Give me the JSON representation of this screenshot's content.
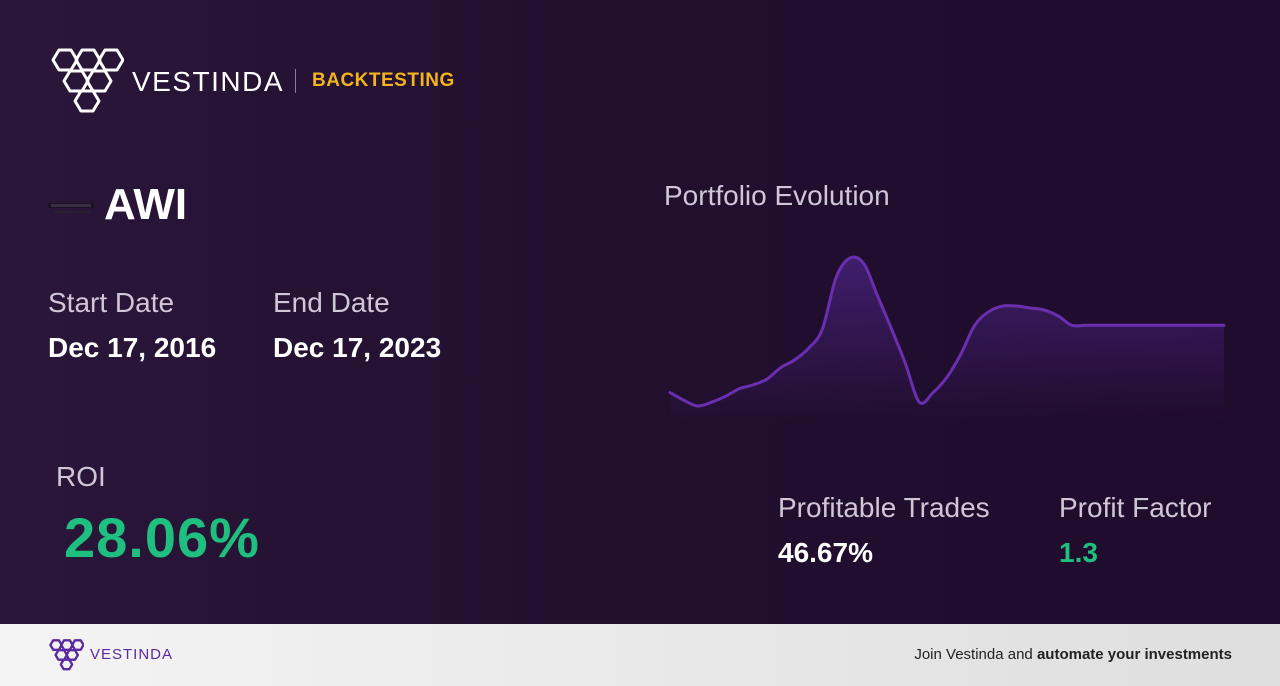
{
  "brand": {
    "name": "VESTINDA",
    "tag": "BACKTESTING",
    "logo_icon": "hexagon-cluster-icon"
  },
  "ticker": {
    "symbol": "AWI",
    "logo_icon": "armstrong-logo-icon"
  },
  "dates": {
    "start_label": "Start Date",
    "start_value": "Dec 17, 2016",
    "end_label": "End Date",
    "end_value": "Dec 17, 2023"
  },
  "roi": {
    "label": "ROI",
    "value": "28.06%"
  },
  "stats": {
    "trades_label": "Profitable Trades",
    "trades_value": "46.67%",
    "factor_label": "Profit Factor",
    "factor_value": "1.3"
  },
  "chart_data": {
    "type": "area",
    "title": "Portfolio Evolution",
    "xlabel": "",
    "ylabel": "",
    "grid": false,
    "line_color": "#6a2fb0",
    "x": [
      0,
      1,
      2,
      3,
      4,
      5,
      6,
      7,
      8,
      9,
      10,
      11,
      12,
      13,
      14,
      15,
      16,
      17,
      18,
      19,
      20,
      21,
      22,
      23,
      24,
      25,
      26,
      27,
      28,
      29,
      30,
      31,
      32,
      33,
      34,
      35,
      36,
      37,
      38,
      39,
      40
    ],
    "values": [
      10,
      6,
      3,
      5,
      8,
      12,
      14,
      17,
      23,
      27,
      33,
      43,
      70,
      80,
      77,
      60,
      43,
      25,
      5,
      10,
      18,
      30,
      45,
      52,
      55,
      55,
      54,
      53,
      50,
      45,
      45,
      45,
      45,
      45,
      45,
      45,
      45,
      45,
      45,
      45,
      45
    ]
  },
  "footer": {
    "name": "VESTINDA",
    "cta_prefix": "Join Vestinda and",
    "cta_bold": "automate your investments"
  },
  "colors": {
    "accent": "#f3b41b",
    "positive": "#1fbf7f",
    "brand_purple": "#5b2a9e"
  }
}
